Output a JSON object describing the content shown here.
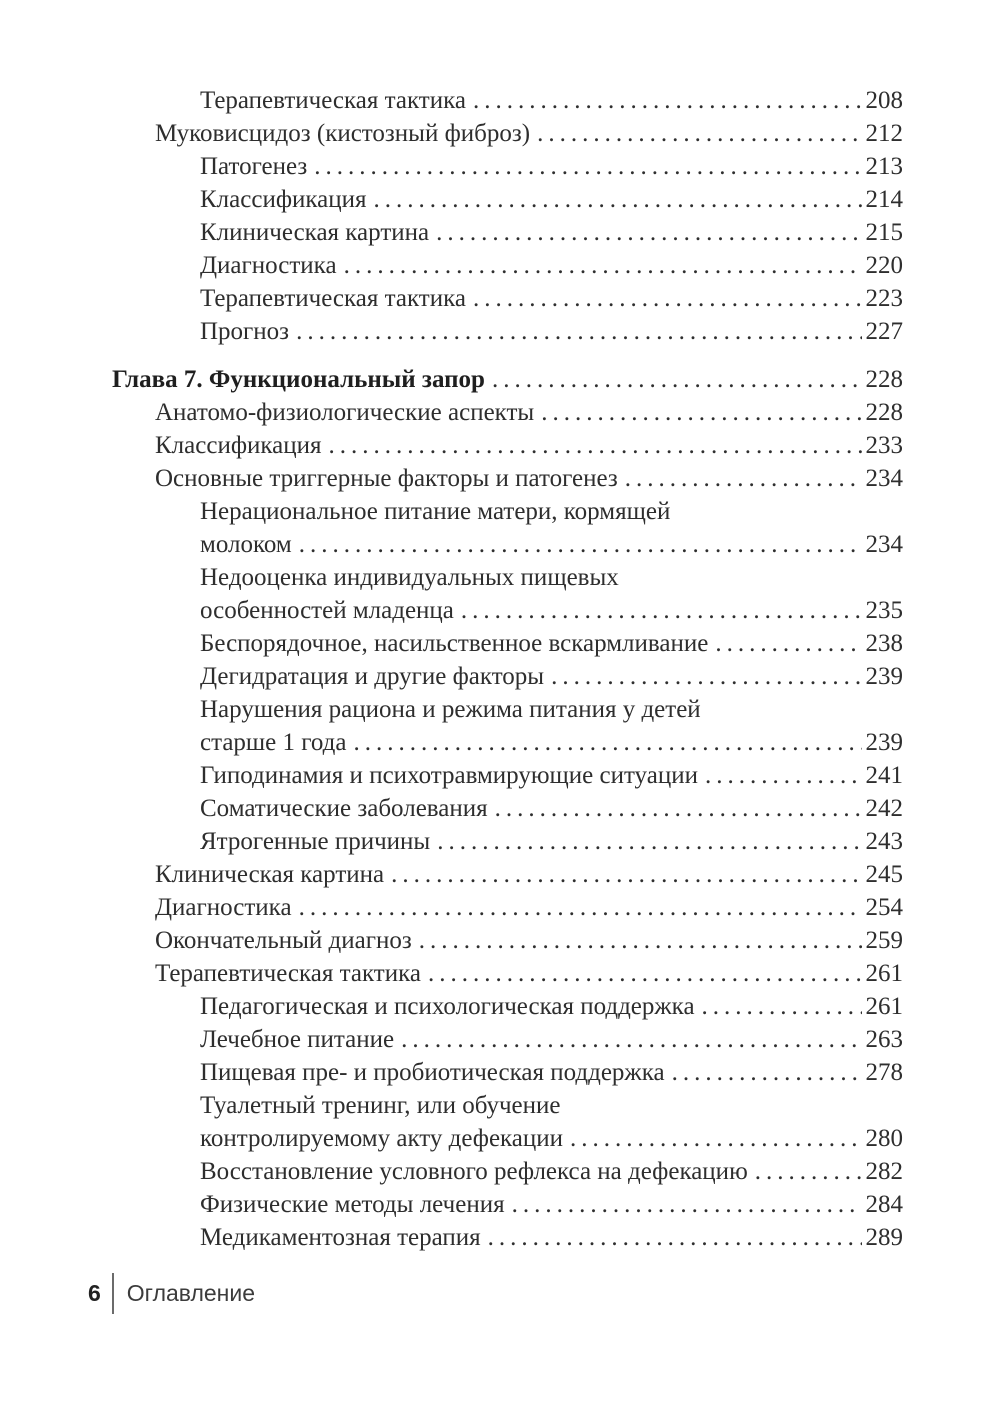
{
  "document": {
    "kind": "book-table-of-contents-page"
  },
  "colors": {
    "page_background": "#ffffff",
    "text": "#2e2e2e",
    "chapter_text": "#1f1f1f",
    "footer_text": "#3c3c3c",
    "footer_divider": "#6b6b6b"
  },
  "footer": {
    "page_number": "6",
    "section_label": "Оглавление"
  },
  "toc": {
    "rows": [
      {
        "text": "Терапевтическая тактика",
        "page": "208",
        "indent": 2,
        "bold": false,
        "gap_before": false
      },
      {
        "text": "Муковисцидоз (кистозный фиброз)",
        "page": "212",
        "indent": 1,
        "bold": false,
        "gap_before": false
      },
      {
        "text": "Патогенез",
        "page": "213",
        "indent": 2,
        "bold": false,
        "gap_before": false
      },
      {
        "text": "Классификация",
        "page": "214",
        "indent": 2,
        "bold": false,
        "gap_before": false
      },
      {
        "text": "Клиническая картина",
        "page": "215",
        "indent": 2,
        "bold": false,
        "gap_before": false
      },
      {
        "text": "Диагностика",
        "page": "220",
        "indent": 2,
        "bold": false,
        "gap_before": false
      },
      {
        "text": "Терапевтическая тактика",
        "page": "223",
        "indent": 2,
        "bold": false,
        "gap_before": false
      },
      {
        "text": "Прогноз",
        "page": "227",
        "indent": 2,
        "bold": false,
        "gap_before": false
      },
      {
        "text": "Глава 7. Функциональный запор",
        "page": "228",
        "indent": 0,
        "bold": true,
        "gap_before": true
      },
      {
        "text": "Анатомо-физиологические аспекты",
        "page": "228",
        "indent": 1,
        "bold": false,
        "gap_before": false
      },
      {
        "text": "Классификация",
        "page": "233",
        "indent": 1,
        "bold": false,
        "gap_before": false
      },
      {
        "text": "Основные триггерные факторы и патогенез",
        "page": "234",
        "indent": 1,
        "bold": false,
        "gap_before": false
      },
      {
        "text": "Нерациональное питание матери, кормящей",
        "page": "",
        "indent": 2,
        "bold": false,
        "gap_before": false
      },
      {
        "text": "молоком",
        "page": "234",
        "indent": 2,
        "bold": false,
        "gap_before": false
      },
      {
        "text": "Недооценка индивидуальных пищевых",
        "page": "",
        "indent": 2,
        "bold": false,
        "gap_before": false
      },
      {
        "text": "особенностей младенца",
        "page": "235",
        "indent": 2,
        "bold": false,
        "gap_before": false
      },
      {
        "text": "Беспорядочное, насильственное вскармливание",
        "page": "238",
        "indent": 2,
        "bold": false,
        "gap_before": false
      },
      {
        "text": "Дегидратация и другие факторы",
        "page": "239",
        "indent": 2,
        "bold": false,
        "gap_before": false
      },
      {
        "text": "Нарушения рациона и режима питания у детей",
        "page": "",
        "indent": 2,
        "bold": false,
        "gap_before": false
      },
      {
        "text": "старше 1 года",
        "page": "239",
        "indent": 2,
        "bold": false,
        "gap_before": false
      },
      {
        "text": "Гиподинамия и психотравмирующие ситуации",
        "page": "241",
        "indent": 2,
        "bold": false,
        "gap_before": false
      },
      {
        "text": "Соматические заболевания",
        "page": "242",
        "indent": 2,
        "bold": false,
        "gap_before": false
      },
      {
        "text": "Ятрогенные причины",
        "page": "243",
        "indent": 2,
        "bold": false,
        "gap_before": false
      },
      {
        "text": "Клиническая картина",
        "page": "245",
        "indent": 1,
        "bold": false,
        "gap_before": false
      },
      {
        "text": "Диагностика",
        "page": "254",
        "indent": 1,
        "bold": false,
        "gap_before": false
      },
      {
        "text": "Окончательный диагноз",
        "page": "259",
        "indent": 1,
        "bold": false,
        "gap_before": false
      },
      {
        "text": "Терапевтическая тактика",
        "page": "261",
        "indent": 1,
        "bold": false,
        "gap_before": false
      },
      {
        "text": "Педагогическая и психологическая поддержка",
        "page": "261",
        "indent": 2,
        "bold": false,
        "gap_before": false
      },
      {
        "text": "Лечебное питание",
        "page": "263",
        "indent": 2,
        "bold": false,
        "gap_before": false
      },
      {
        "text": "Пищевая пре- и пробиотическая поддержка",
        "page": "278",
        "indent": 2,
        "bold": false,
        "gap_before": false
      },
      {
        "text": "Туалетный тренинг, или обучение",
        "page": "",
        "indent": 2,
        "bold": false,
        "gap_before": false
      },
      {
        "text": "контролируемому акту дефекации",
        "page": "280",
        "indent": 2,
        "bold": false,
        "gap_before": false
      },
      {
        "text": "Восстановление условного рефлекса на дефекацию",
        "page": "282",
        "indent": 2,
        "bold": false,
        "gap_before": false
      },
      {
        "text": "Физические методы лечения",
        "page": "284",
        "indent": 2,
        "bold": false,
        "gap_before": false
      },
      {
        "text": "Медикаментозная терапия",
        "page": "289",
        "indent": 2,
        "bold": false,
        "gap_before": false
      }
    ]
  }
}
